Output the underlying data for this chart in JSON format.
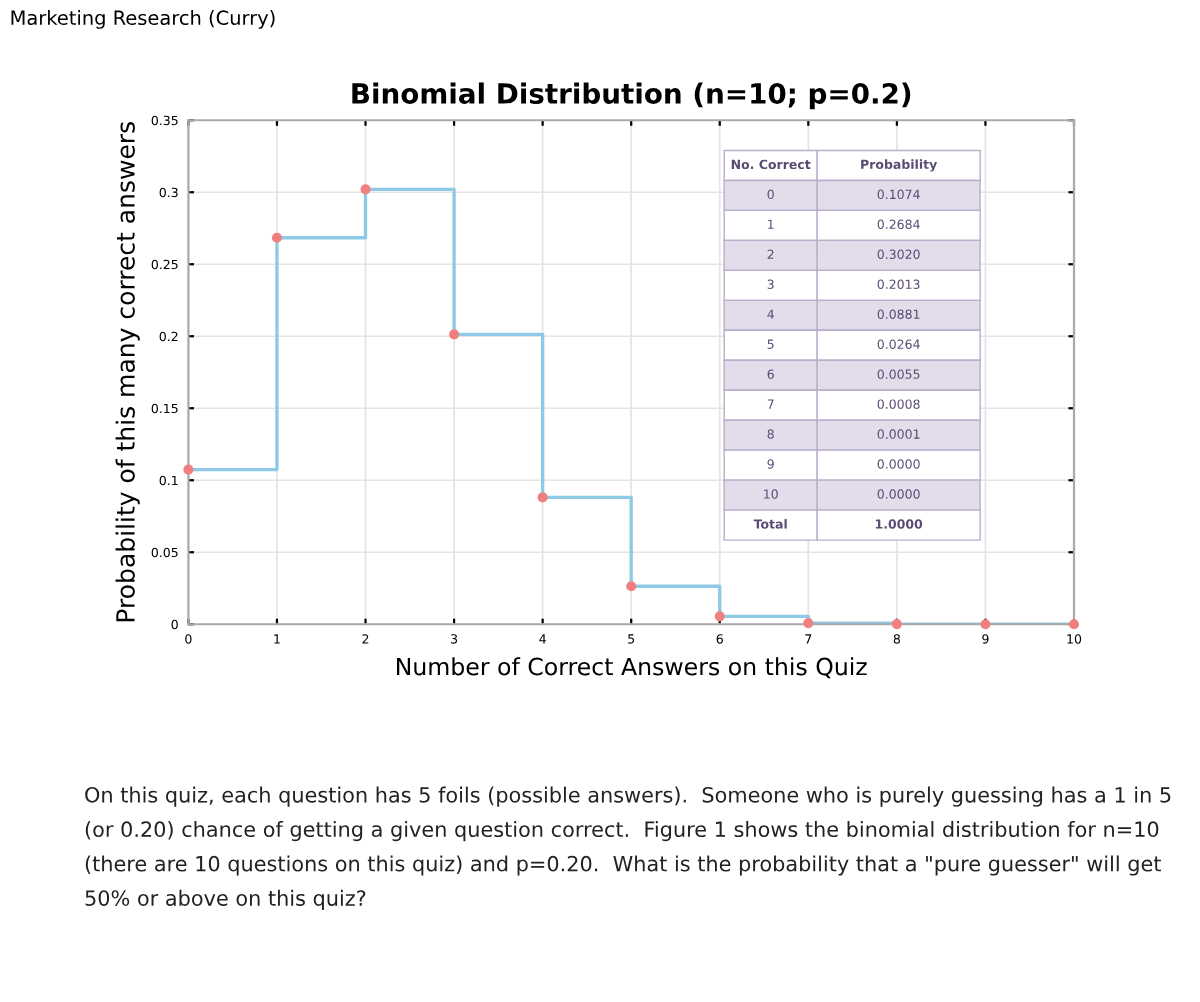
{
  "chart_data": {
    "type": "step",
    "title": "Binomial Distribution (n=10; p=0.2)",
    "xlabel": "Number of Correct Answers on this Quiz",
    "ylabel": "Probability of this many correct answers",
    "x": [
      0,
      1,
      2,
      3,
      4,
      5,
      6,
      7,
      8,
      9,
      10
    ],
    "series": [
      {
        "color": "#8ec9e6",
        "colors": [
          "#f08080",
          "#f08080",
          "#f08080",
          "#f08080",
          "#f08080",
          "#f08080",
          "#f08080",
          "#f08080",
          "#f08080",
          "#f08080",
          "#f08080"
        ],
        "values": [
          0.1074,
          0.2684,
          0.302,
          0.2013,
          0.0881,
          0.0264,
          0.0055,
          0.0008,
          0.0001,
          0.0,
          0.0
        ]
      }
    ],
    "xlim": [
      0,
      10
    ],
    "xticks": [
      0,
      1,
      2,
      3,
      4,
      5,
      6,
      7,
      8,
      9,
      10
    ],
    "ylim": [
      0,
      0.35
    ],
    "yticks": [
      0,
      0.05,
      0.1,
      0.15,
      0.2,
      0.25,
      0.3,
      0.35
    ],
    "grid": true,
    "marker": "circle",
    "line_style": "solid",
    "annotations": [
      "Marketing Research (Curry)",
      "On this quiz, each question has 5 foils (possible answers).  Someone who is purely guessing has a 1 in 5 (or 0.20) chance of getting a given question correct.  Figure 1 shows the binomial distribution for n=10 (there are 10 questions on this quiz) and p=0.20.  What is the probability that a \"pure guesser\" will get 50% or above on this quiz?",
      "No. Correct",
      "Probability",
      "0",
      "0.1074",
      "1",
      "0.2684",
      "2",
      "0.3020",
      "3",
      "0.2013",
      "4",
      "0.0881",
      "5",
      "0.0264",
      "6",
      "0.0055",
      "7",
      "0.0008",
      "8",
      "0.0001",
      "9",
      "0.0000",
      "10",
      "0.0000",
      "Total",
      "1.0000"
    ]
  }
}
